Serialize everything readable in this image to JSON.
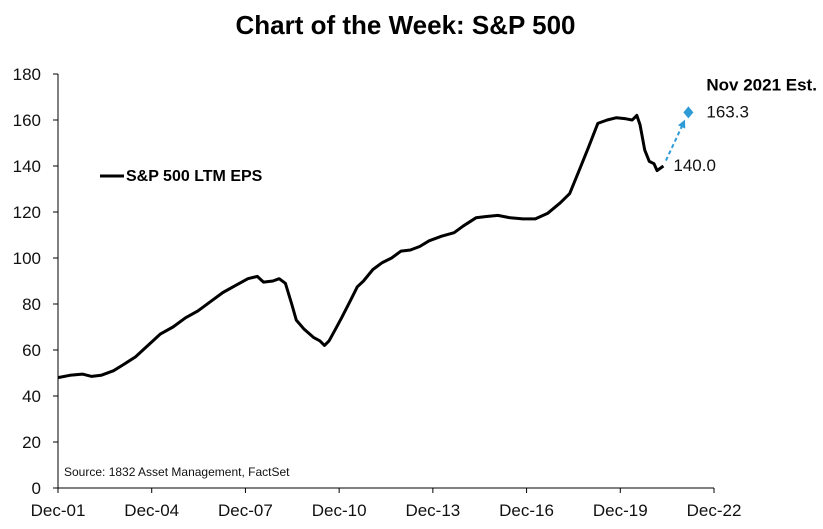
{
  "chart_data": {
    "type": "line",
    "title": "Chart of the Week: S&P 500",
    "xlabel": "",
    "ylabel": "",
    "ylim": [
      0,
      180
    ],
    "xlim": [
      2001.92,
      2022.92
    ],
    "y_ticks": [
      "0",
      "20",
      "40",
      "60",
      "80",
      "100",
      "120",
      "140",
      "160",
      "180"
    ],
    "x_ticks": [
      {
        "label": "Dec-01",
        "value": 2001.92
      },
      {
        "label": "Dec-04",
        "value": 2004.92
      },
      {
        "label": "Dec-07",
        "value": 2007.92
      },
      {
        "label": "Dec-10",
        "value": 2010.92
      },
      {
        "label": "Dec-13",
        "value": 2013.92
      },
      {
        "label": "Dec-16",
        "value": 2016.92
      },
      {
        "label": "Dec-19",
        "value": 2019.92
      },
      {
        "label": "Dec-22",
        "value": 2022.92
      }
    ],
    "series": [
      {
        "name": "S&P 500 LTM EPS",
        "color": "#000000",
        "points": [
          [
            2001.92,
            48
          ],
          [
            2002.3,
            49
          ],
          [
            2002.7,
            49.5
          ],
          [
            2003.0,
            48.5
          ],
          [
            2003.3,
            49
          ],
          [
            2003.7,
            51
          ],
          [
            2004.0,
            53.5
          ],
          [
            2004.4,
            57
          ],
          [
            2004.8,
            62
          ],
          [
            2005.2,
            67
          ],
          [
            2005.6,
            70
          ],
          [
            2006.0,
            74
          ],
          [
            2006.4,
            77
          ],
          [
            2006.8,
            81
          ],
          [
            2007.2,
            85
          ],
          [
            2007.6,
            88
          ],
          [
            2008.0,
            91
          ],
          [
            2008.3,
            92
          ],
          [
            2008.5,
            89.5
          ],
          [
            2008.8,
            90
          ],
          [
            2009.0,
            91
          ],
          [
            2009.2,
            89
          ],
          [
            2009.4,
            80
          ],
          [
            2009.55,
            73
          ],
          [
            2009.8,
            69
          ],
          [
            2010.1,
            65.5
          ],
          [
            2010.3,
            64
          ],
          [
            2010.45,
            62
          ],
          [
            2010.6,
            64
          ],
          [
            2010.8,
            69
          ],
          [
            2011.0,
            74
          ],
          [
            2011.3,
            82
          ],
          [
            2011.5,
            87.5
          ],
          [
            2011.7,
            90
          ],
          [
            2012.0,
            95
          ],
          [
            2012.3,
            98
          ],
          [
            2012.6,
            100
          ],
          [
            2012.9,
            103
          ],
          [
            2013.2,
            103.5
          ],
          [
            2013.5,
            105
          ],
          [
            2013.8,
            107.5
          ],
          [
            2014.2,
            109.5
          ],
          [
            2014.6,
            111
          ],
          [
            2014.9,
            114
          ],
          [
            2015.3,
            117.5
          ],
          [
            2015.6,
            118
          ],
          [
            2016.0,
            118.5
          ],
          [
            2016.4,
            117.5
          ],
          [
            2016.8,
            117
          ],
          [
            2017.2,
            117
          ],
          [
            2017.6,
            119.5
          ],
          [
            2018.0,
            124
          ],
          [
            2018.3,
            128
          ],
          [
            2018.6,
            138
          ],
          [
            2018.9,
            148
          ],
          [
            2019.2,
            158.5
          ],
          [
            2019.5,
            160
          ],
          [
            2019.8,
            161
          ],
          [
            2020.1,
            160.5
          ],
          [
            2020.3,
            160
          ],
          [
            2020.45,
            162
          ],
          [
            2020.55,
            158
          ],
          [
            2020.7,
            147
          ],
          [
            2020.85,
            142
          ],
          [
            2021.0,
            141
          ],
          [
            2021.1,
            138
          ],
          [
            2021.3,
            140
          ]
        ]
      },
      {
        "name": "Nov 2021 Est.",
        "color": "#2E9BD6",
        "style": "dashed",
        "points": [
          [
            2021.3,
            140.0
          ],
          [
            2022.1,
            163.3
          ]
        ]
      }
    ],
    "annotations": {
      "estimate_label": "Nov 2021 Est.",
      "estimate_value": "163.3",
      "last_value": "140.0"
    },
    "legend": {
      "label": "S&P 500 LTM EPS",
      "placement": "left"
    },
    "source": "Source: 1832 Asset Management, FactSet",
    "grid": false
  }
}
